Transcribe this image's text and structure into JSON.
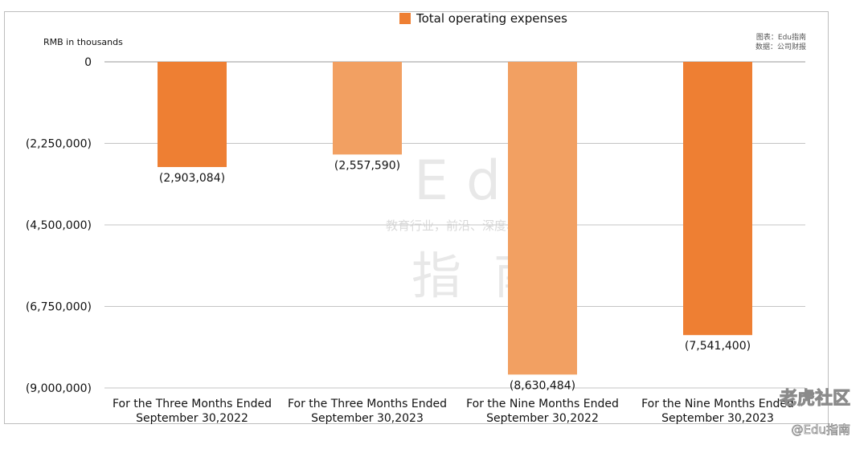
{
  "chart_data": {
    "type": "bar",
    "legend": [
      {
        "name": "Total operating expenses",
        "color": "#ee7f33"
      }
    ],
    "unit_label": "RMB in thousands",
    "credit_lines": [
      "图表：Edu指南",
      "数据：公司财报"
    ],
    "categories": [
      [
        "For the Three Months Ended",
        "September 30,2022"
      ],
      [
        "For the Three Months Ended",
        "September 30,2023"
      ],
      [
        "For the Nine Months Ended",
        "September 30,2022"
      ],
      [
        "For the Nine Months Ended",
        "September 30,2023"
      ]
    ],
    "series": [
      {
        "name": "Total operating expenses",
        "values": [
          -2903084,
          -2557590,
          -8630484,
          -7541400
        ],
        "colors": [
          "#ee7f33",
          "#f2a062",
          "#f2a062",
          "#ee7f33"
        ]
      }
    ],
    "data_labels": [
      "(2,903,084)",
      "(2,557,590)",
      "(8,630,484)",
      "(7,541,400)"
    ],
    "y_ticks": [
      {
        "value": 0,
        "label": "0"
      },
      {
        "value": -2250000,
        "label": "(2,250,000)"
      },
      {
        "value": -4500000,
        "label": "(4,500,000)"
      },
      {
        "value": -6750000,
        "label": "(6,750,000)"
      },
      {
        "value": -9000000,
        "label": "(9,000,000)"
      }
    ],
    "ylim": [
      -9000000,
      0
    ],
    "grid": true,
    "legend_position": "top-center"
  },
  "watermark": {
    "latin": "Edu",
    "slogan": "教育行业，前沿、深度、独家",
    "cn": "指南"
  },
  "corner_marks": [
    "老虎社区",
    "@Edu指南"
  ]
}
